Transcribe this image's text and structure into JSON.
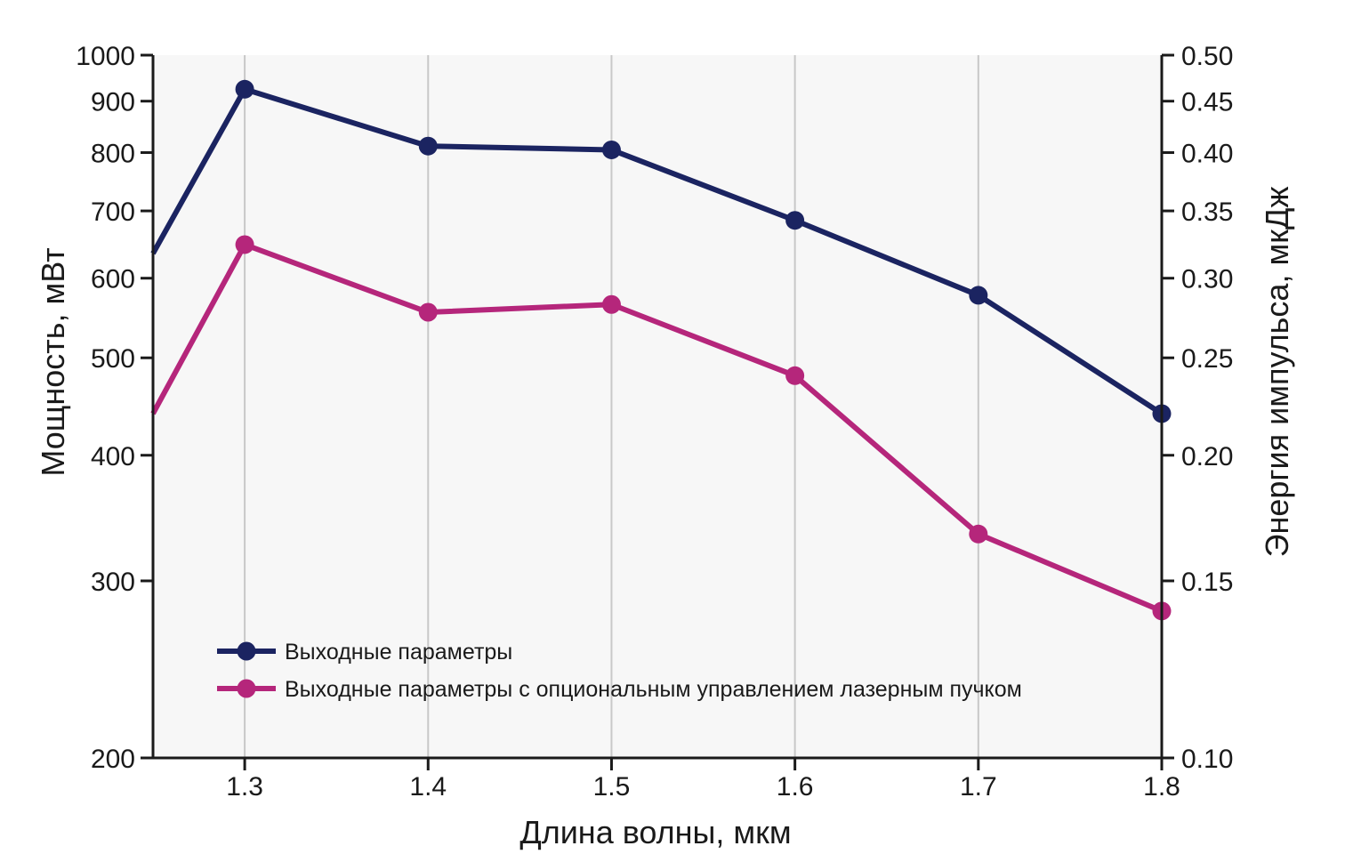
{
  "chart_data": {
    "type": "line",
    "title": "",
    "xlabel": "Длина волны, мкм",
    "ylabel": "Мощность, мВт",
    "y2label": "Энергия импульса, мкДж",
    "xlim": [
      1.25,
      1.8
    ],
    "ylim": [
      200,
      1000
    ],
    "y2lim": [
      0.1,
      0.5
    ],
    "yscale": "log",
    "y2scale": "log",
    "x_ticks": [
      "1.3",
      "1.4",
      "1.5",
      "1.6",
      "1.7",
      "1.8"
    ],
    "y_ticks": [
      "200",
      "300",
      "400",
      "500",
      "600",
      "700",
      "800",
      "900",
      "1000"
    ],
    "y2_ticks": [
      "0.10",
      "0.15",
      "0.20",
      "0.25",
      "0.30",
      "0.35",
      "0.40",
      "0.45",
      "0.50"
    ],
    "grid": "vertical",
    "legend_position": "bottom-left",
    "series": [
      {
        "name": "Выходные параметры",
        "color": "#1b2461",
        "x": [
          1.25,
          1.3,
          1.4,
          1.5,
          1.6,
          1.7,
          1.8
        ],
        "values": [
          635,
          925,
          812,
          805,
          685,
          577,
          440
        ],
        "markers": [
          false,
          true,
          true,
          true,
          true,
          true,
          true
        ]
      },
      {
        "name": "Выходные параметры с опциональным управлением лазерным пучком",
        "color": "#b5267b",
        "x": [
          1.25,
          1.3,
          1.4,
          1.5,
          1.6,
          1.7,
          1.8
        ],
        "values": [
          440,
          648,
          555,
          565,
          480,
          334,
          280
        ],
        "markers": [
          false,
          true,
          true,
          true,
          true,
          true,
          true
        ]
      }
    ]
  },
  "colors": {
    "plot_background": "#f7f7f7",
    "gridline": "#c8c8c8",
    "axis": "#1a1a1a"
  }
}
